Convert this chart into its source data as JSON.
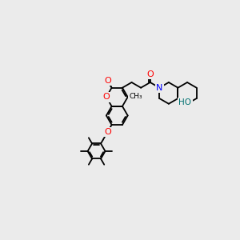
{
  "bg": "#ebebeb",
  "bond_color": "#000000",
  "lw": 1.3,
  "dbo": 4.0,
  "fs": 8,
  "xlim": [
    -3.0,
    13.0
  ],
  "ylim": [
    -2.0,
    6.0
  ]
}
